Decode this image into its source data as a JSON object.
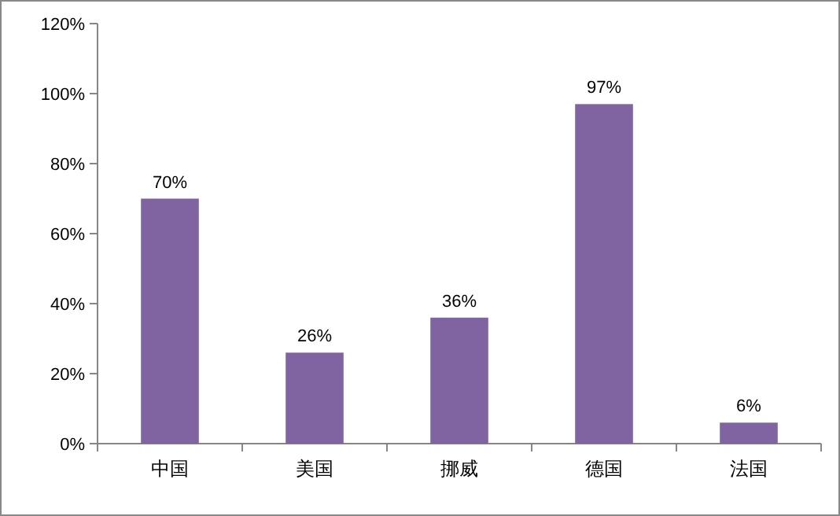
{
  "chart_data": {
    "type": "bar",
    "categories": [
      "中国",
      "美国",
      "挪威",
      "德国",
      "法国"
    ],
    "values": [
      70,
      26,
      36,
      97,
      6
    ],
    "value_labels": [
      "70%",
      "26%",
      "36%",
      "97%",
      "6%"
    ],
    "color": "#8064a2",
    "ylim": [
      0,
      120
    ],
    "yticks": [
      {
        "value": 0,
        "label": "0%"
      },
      {
        "value": 20,
        "label": "20%"
      },
      {
        "value": 40,
        "label": "40%"
      },
      {
        "value": 60,
        "label": "60%"
      },
      {
        "value": 80,
        "label": "80%"
      },
      {
        "value": 100,
        "label": "100%"
      },
      {
        "value": 120,
        "label": "120%"
      }
    ],
    "grid": false
  }
}
